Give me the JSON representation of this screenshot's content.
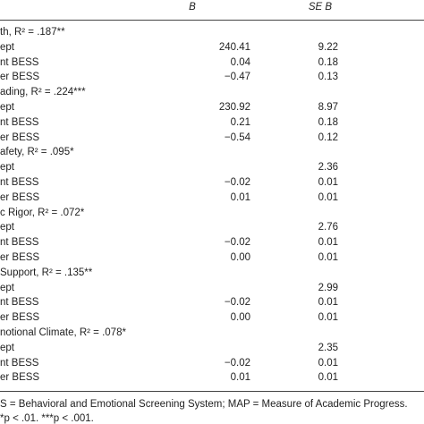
{
  "header": {
    "col_b": "B",
    "col_se": "SE B"
  },
  "sections": [
    {
      "title": "th, R² = .187**",
      "rows": [
        {
          "label": "ept",
          "b": "240.41",
          "se": "9.22"
        },
        {
          "label": "nt BESS",
          "b": "0.04",
          "se": "0.18"
        },
        {
          "label": "er BESS",
          "b": "−0.47",
          "se": "0.13"
        }
      ]
    },
    {
      "title": "ading, R² = .224***",
      "rows": [
        {
          "label": "ept",
          "b": "230.92",
          "se": "8.97"
        },
        {
          "label": "nt BESS",
          "b": "0.21",
          "se": "0.18"
        },
        {
          "label": "er BESS",
          "b": "−0.54",
          "se": "0.12"
        }
      ]
    },
    {
      "title": "afety, R² = .095*",
      "rows": [
        {
          "label": "ept",
          "se": "2.36"
        },
        {
          "label": "nt BESS",
          "b": "−0.02",
          "se": "0.01"
        },
        {
          "label": "er BESS",
          "b": "0.01",
          "se": "0.01"
        }
      ]
    },
    {
      "title": "c Rigor, R² = .072*",
      "rows": [
        {
          "label": "ept",
          "se": "2.76"
        },
        {
          "label": "nt BESS",
          "b": "−0.02",
          "se": "0.01"
        },
        {
          "label": "er BESS",
          "b": "0.00",
          "se": "0.01"
        }
      ]
    },
    {
      "title": "Support, R² = .135**",
      "rows": [
        {
          "label": "ept",
          "se": "2.99"
        },
        {
          "label": "nt BESS",
          "b": "−0.02",
          "se": "0.01"
        },
        {
          "label": "er BESS",
          "b": "0.00",
          "se": "0.01"
        }
      ]
    },
    {
      "title": "notional Climate, R² = .078*",
      "rows": [
        {
          "label": "ept",
          "se": "2.35"
        },
        {
          "label": "nt BESS",
          "b": "−0.02",
          "se": "0.01"
        },
        {
          "label": "er BESS",
          "b": "0.01",
          "se": "0.01"
        }
      ]
    }
  ],
  "notes": [
    "S = Behavioral and Emotional Screening System; MAP = Measure of Academic Progress.",
    "*p < .01. ***p < .001."
  ]
}
